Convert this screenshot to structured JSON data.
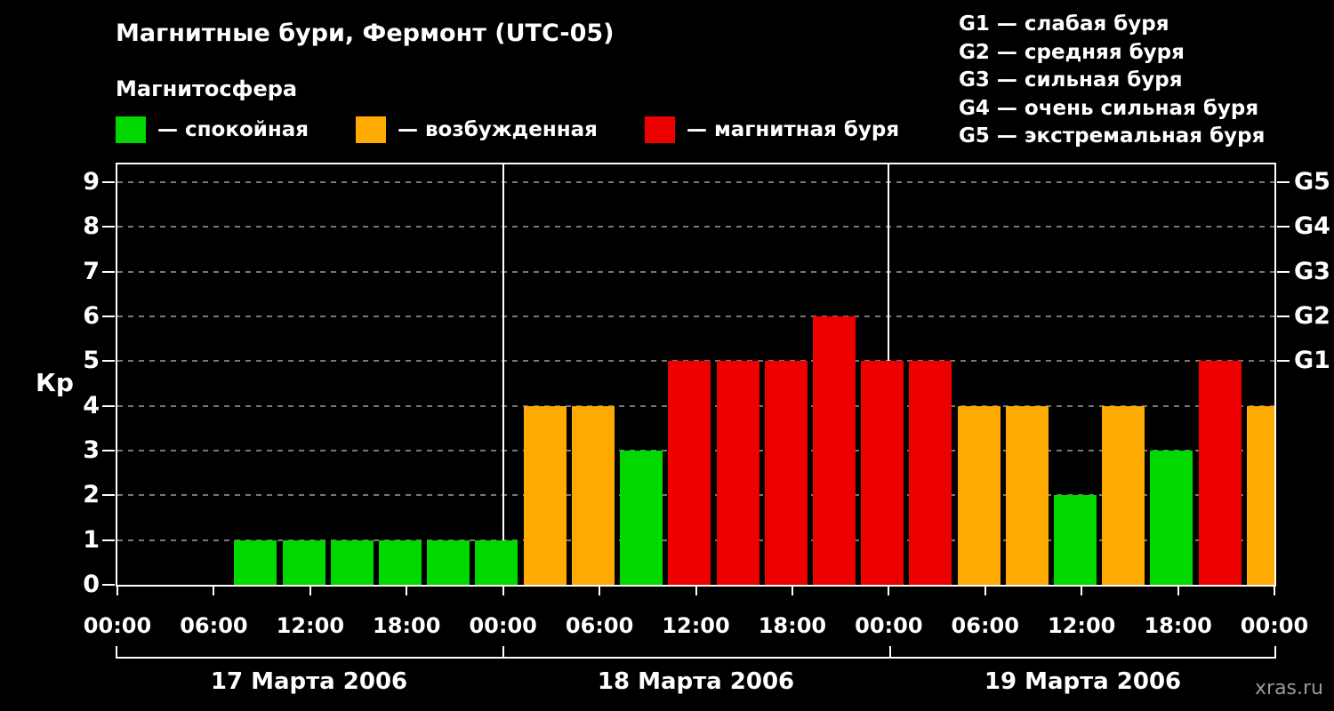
{
  "title": "Магнитные бури, Фермонт (UTC-05)",
  "subtitle": "Магнитосфера",
  "legend": [
    {
      "label": "— спокойная",
      "color": "#00d800"
    },
    {
      "label": "— возбужденная",
      "color": "#ffaa00"
    },
    {
      "label": "— магнитная буря",
      "color": "#ee0000"
    }
  ],
  "g_legend": [
    "G1 — слабая буря",
    "G2 — средняя буря",
    "G3 — сильная буря",
    "G4 — очень сильная буря",
    "G5 — экстремальная буря"
  ],
  "watermark": "xras.ru",
  "chart_data": {
    "type": "bar",
    "title": "Магнитные бури, Фермонт (UTC-05)",
    "ylabel": "Кр",
    "ylim": [
      0,
      9.4
    ],
    "yticks": [
      0,
      1,
      2,
      3,
      4,
      5,
      6,
      7,
      8,
      9
    ],
    "x_tick_labels": [
      "00:00",
      "06:00",
      "12:00",
      "18:00",
      "00:00",
      "06:00",
      "12:00",
      "18:00",
      "00:00",
      "06:00",
      "12:00",
      "18:00",
      "00:00"
    ],
    "right_axis": [
      {
        "label": "G1",
        "kp": 5
      },
      {
        "label": "G2",
        "kp": 6
      },
      {
        "label": "G3",
        "kp": 7
      },
      {
        "label": "G4",
        "kp": 8
      },
      {
        "label": "G5",
        "kp": 9
      }
    ],
    "interval_hours": 3,
    "days": [
      {
        "date": "17 Марта 2006",
        "values": [
          0,
          0,
          1,
          1,
          1,
          1,
          1,
          1
        ]
      },
      {
        "date": "18 Марта 2006",
        "values": [
          4,
          4,
          3,
          5,
          5,
          5,
          6,
          5
        ]
      },
      {
        "date": "19 Марта 2006",
        "values": [
          5,
          4,
          4,
          2,
          4,
          3,
          5,
          4
        ]
      }
    ],
    "color_rules": {
      "quiet_max_kp": 3,
      "storm_min_kp": 5
    },
    "colors": {
      "quiet": "#00d800",
      "excited": "#ffaa00",
      "storm": "#ee0000"
    },
    "grid": true,
    "grid_color": "#777777",
    "background": "#000000",
    "legend_position": "top"
  }
}
